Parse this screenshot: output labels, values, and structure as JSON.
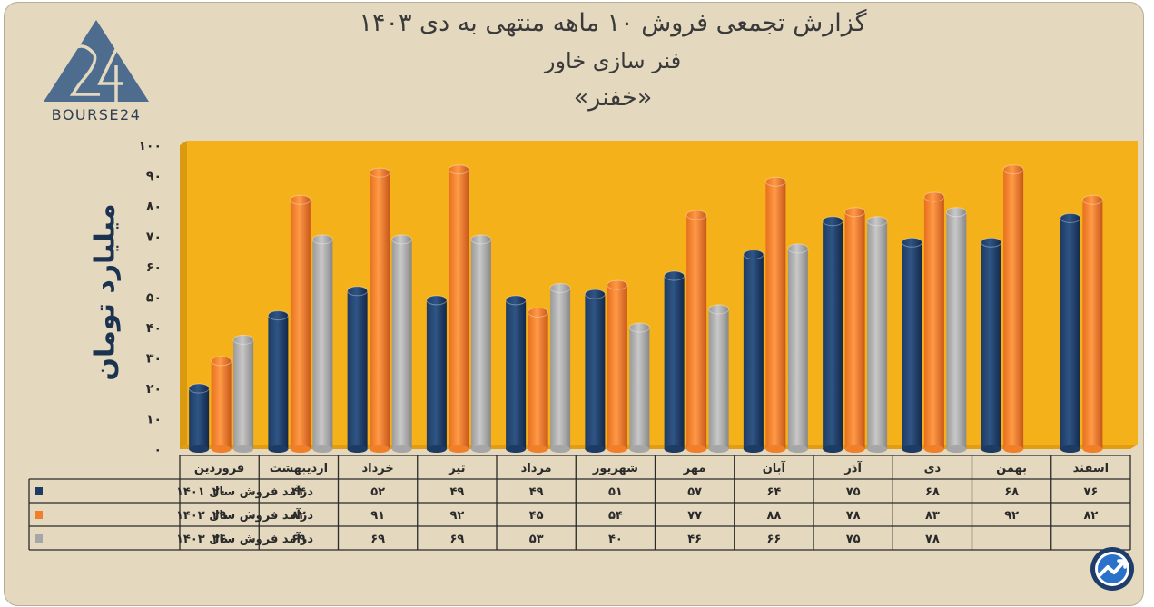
{
  "chart_data": {
    "type": "bar",
    "title": "گزارش تجمعی فروش ۱۰ ماهه منتهی به دی ۱۴۰۳",
    "subtitle": "فنر سازی خاور",
    "symbol": "«خفنر»",
    "ylabel": "میلیارد تومان",
    "ylim": [
      0,
      100
    ],
    "yticks": [
      "۰",
      "۱۰",
      "۲۰",
      "۳۰",
      "۴۰",
      "۵۰",
      "۶۰",
      "۷۰",
      "۸۰",
      "۹۰",
      "۱۰۰"
    ],
    "categories": [
      "فروردین",
      "اردیبهشت",
      "خرداد",
      "تیر",
      "مرداد",
      "شهریور",
      "مهر",
      "آبان",
      "آذر",
      "دی",
      "بهمن",
      "اسفند"
    ],
    "series": [
      {
        "name": "درآمد فروش سال ۱۴۰۱",
        "color": "#1d3b63",
        "values": [
          20,
          44,
          52,
          49,
          49,
          51,
          57,
          64,
          75,
          68,
          68,
          76
        ],
        "labels": [
          "۲۰",
          "۴۴",
          "۵۲",
          "۴۹",
          "۴۹",
          "۵۱",
          "۵۷",
          "۶۴",
          "۷۵",
          "۶۸",
          "۶۸",
          "۷۶"
        ]
      },
      {
        "name": "درآمد فروش سال ۱۴۰۲",
        "color": "#f07f2a",
        "values": [
          29,
          82,
          91,
          92,
          45,
          54,
          77,
          88,
          78,
          83,
          92,
          82
        ],
        "labels": [
          "۲۹",
          "۸۲",
          "۹۱",
          "۹۲",
          "۴۵",
          "۵۴",
          "۷۷",
          "۸۸",
          "۷۸",
          "۸۳",
          "۹۲",
          "۸۲"
        ]
      },
      {
        "name": "درآمد فروش سال ۱۴۰۳",
        "color": "#a6a6a6",
        "values": [
          36,
          69,
          69,
          69,
          53,
          40,
          46,
          66,
          75,
          78,
          null,
          null
        ],
        "labels": [
          "۳۶",
          "۶۹",
          "۶۹",
          "۶۹",
          "۵۳",
          "۴۰",
          "۴۶",
          "۶۶",
          "۷۵",
          "۷۸",
          "",
          ""
        ]
      }
    ],
    "grid": false,
    "legend": "table-bottom",
    "colors": {
      "plot_bg": "#f5b11a",
      "wall": "#d99a10",
      "page_bg": "#e4d8bf",
      "title": "#3a3a3a",
      "ylabel": "#1b3350"
    }
  },
  "logo": {
    "text": "BOURSE24",
    "mark": "24"
  },
  "badge": {
    "icon": "trend-arrow-icon"
  }
}
